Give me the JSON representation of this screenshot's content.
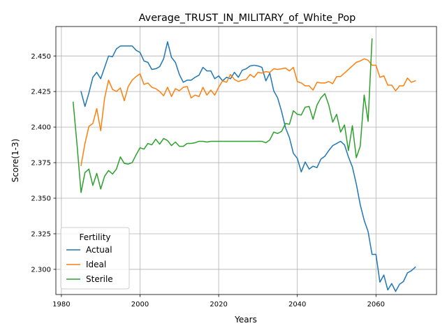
{
  "chart_data": {
    "type": "line",
    "title": "Average_TRUST_IN_MILITARY_of_White_Pop",
    "xlabel": "Years",
    "ylabel": "Score(1-3)",
    "xlim": [
      1978.6,
      1975.4
    ],
    "ylim": [
      2.2823,
      2.4707
    ],
    "grid": true,
    "xticks": [
      1980,
      2000,
      2020,
      2040,
      2060
    ],
    "yticks": [
      2.3,
      2.325,
      2.35,
      2.375,
      2.4,
      2.425,
      2.45
    ],
    "ytick_labels": [
      "2.300",
      "2.325",
      "2.350",
      "2.375",
      "2.400",
      "2.425",
      "2.450"
    ],
    "legend": {
      "title": "Fertility",
      "position": "lower-left"
    },
    "series": [
      {
        "name": "Actual",
        "color": "#1f77b4",
        "x": [
          1985,
          1986,
          1987,
          1988,
          1989,
          1990,
          1991,
          1992,
          1993,
          1994,
          1995,
          1996,
          1997,
          1998,
          1999,
          2000,
          2001,
          2002,
          2003,
          2004,
          2005,
          2006,
          2007,
          2008,
          2009,
          2010,
          2011,
          2012,
          2013,
          2014,
          2015,
          2016,
          2017,
          2018,
          2019,
          2020,
          2021,
          2022,
          2023,
          2024,
          2025,
          2026,
          2027,
          2028,
          2029,
          2030,
          2031,
          2032,
          2033,
          2034,
          2035,
          2036,
          2037,
          2038,
          2039,
          2040,
          2041,
          2042,
          2043,
          2044,
          2045,
          2046,
          2047,
          2048,
          2049,
          2050,
          2051,
          2052,
          2053,
          2054,
          2055,
          2056,
          2057,
          2058,
          2059,
          2060,
          2061,
          2062,
          2063,
          2064,
          2065,
          2066,
          2067,
          2068,
          2069,
          2070
        ],
        "values": [
          2.425,
          2.4145,
          2.424,
          2.435,
          2.4385,
          2.434,
          2.442,
          2.45,
          2.4495,
          2.455,
          2.457,
          2.457,
          2.457,
          2.457,
          2.454,
          2.4525,
          2.4465,
          2.4455,
          2.4405,
          2.441,
          2.4425,
          2.448,
          2.46,
          2.449,
          2.4455,
          2.437,
          2.4315,
          2.433,
          2.433,
          2.435,
          2.4365,
          2.442,
          2.4395,
          2.4395,
          2.434,
          2.436,
          2.4325,
          2.435,
          2.434,
          2.4385,
          2.435,
          2.44,
          2.441,
          2.443,
          2.4435,
          2.443,
          2.442,
          2.4325,
          2.438,
          2.4255,
          2.4205,
          2.411,
          2.3995,
          2.3925,
          2.3815,
          2.378,
          2.3685,
          2.3755,
          2.3705,
          2.3725,
          2.3715,
          2.3775,
          2.3795,
          2.3835,
          2.387,
          2.3885,
          2.39,
          2.3875,
          2.379,
          2.372,
          2.36,
          2.3455,
          2.3345,
          2.3265,
          2.3105,
          2.3105,
          2.291,
          2.296,
          2.2855,
          2.29,
          2.2845,
          2.2895,
          2.2915,
          2.2975,
          2.299,
          2.3015
        ]
      },
      {
        "name": "Ideal",
        "color": "#ff7f0e",
        "x": [
          1985,
          1986,
          1987,
          1988,
          1989,
          1990,
          1991,
          1992,
          1993,
          1994,
          1995,
          1996,
          1997,
          1998,
          1999,
          2000,
          2001,
          2002,
          2003,
          2004,
          2005,
          2006,
          2007,
          2008,
          2009,
          2010,
          2011,
          2012,
          2013,
          2014,
          2015,
          2016,
          2017,
          2018,
          2019,
          2020,
          2021,
          2022,
          2023,
          2024,
          2025,
          2026,
          2027,
          2028,
          2029,
          2030,
          2031,
          2032,
          2033,
          2034,
          2035,
          2036,
          2037,
          2038,
          2039,
          2040,
          2041,
          2042,
          2043,
          2044,
          2045,
          2046,
          2047,
          2048,
          2049,
          2050,
          2051,
          2052,
          2053,
          2054,
          2055,
          2056,
          2057,
          2058,
          2059,
          2060,
          2061,
          2062,
          2063,
          2064,
          2065,
          2066,
          2067,
          2068,
          2069,
          2070
        ],
        "values": [
          2.373,
          2.3885,
          2.4005,
          2.4025,
          2.413,
          2.3975,
          2.4205,
          2.433,
          2.4265,
          2.425,
          2.4275,
          2.4185,
          2.4285,
          2.433,
          2.4355,
          2.4375,
          2.43,
          2.431,
          2.428,
          2.427,
          2.425,
          2.422,
          2.428,
          2.4215,
          2.427,
          2.4255,
          2.428,
          2.4285,
          2.4205,
          2.4225,
          2.4215,
          2.428,
          2.4225,
          2.426,
          2.4225,
          2.428,
          2.4325,
          2.4315,
          2.437,
          2.4335,
          2.432,
          2.433,
          2.4335,
          2.437,
          2.435,
          2.4385,
          2.438,
          2.439,
          2.4385,
          2.441,
          2.4405,
          2.441,
          2.4415,
          2.4395,
          2.442,
          2.432,
          2.431,
          2.429,
          2.429,
          2.426,
          2.4315,
          2.431,
          2.431,
          2.432,
          2.4305,
          2.4355,
          2.4355,
          2.438,
          2.4405,
          2.443,
          2.4455,
          2.4465,
          2.448,
          2.447,
          2.4435,
          2.4435,
          2.435,
          2.436,
          2.4295,
          2.4295,
          2.4255,
          2.429,
          2.429,
          2.4345,
          2.4315,
          2.4325
        ]
      },
      {
        "name": "Sterile",
        "color": "#2ca02c",
        "x": [
          1983,
          1984,
          1985,
          1986,
          1987,
          1988,
          1989,
          1990,
          1991,
          1992,
          1993,
          1994,
          1995,
          1996,
          1997,
          1998,
          1999,
          2000,
          2001,
          2002,
          2003,
          2004,
          2005,
          2006,
          2007,
          2008,
          2009,
          2010,
          2011,
          2012,
          2013,
          2014,
          2015,
          2016,
          2017,
          2018,
          2019,
          2020,
          2021,
          2022,
          2023,
          2024,
          2025,
          2026,
          2027,
          2028,
          2029,
          2030,
          2031,
          2032,
          2033,
          2034,
          2035,
          2036,
          2037,
          2038,
          2039,
          2040,
          2041,
          2042,
          2043,
          2044,
          2045,
          2046,
          2047,
          2048,
          2049,
          2050,
          2051,
          2052,
          2053,
          2054,
          2055,
          2056,
          2057,
          2058,
          2059
        ],
        "values": [
          2.4175,
          2.387,
          2.354,
          2.368,
          2.3705,
          2.359,
          2.3675,
          2.3565,
          2.3655,
          2.3695,
          2.367,
          2.3705,
          2.379,
          2.3745,
          2.374,
          2.375,
          2.3805,
          2.3855,
          2.3845,
          2.3885,
          2.3875,
          2.3915,
          2.388,
          2.392,
          2.3905,
          2.387,
          2.3895,
          2.3865,
          2.3865,
          2.3885,
          2.3885,
          2.389,
          2.39,
          2.39,
          2.3895,
          2.39,
          2.39,
          2.39,
          2.39,
          2.39,
          2.39,
          2.39,
          2.39,
          2.39,
          2.39,
          2.39,
          2.39,
          2.39,
          2.39,
          2.389,
          2.391,
          2.3965,
          2.3955,
          2.397,
          2.4025,
          2.402,
          2.4115,
          2.409,
          2.4085,
          2.414,
          2.4145,
          2.4055,
          2.4155,
          2.4205,
          2.4235,
          2.4155,
          2.4035,
          2.409,
          2.3965,
          2.4015,
          2.3835,
          2.401,
          2.3785,
          2.3865,
          2.4225,
          2.404,
          2.462
        ]
      }
    ]
  }
}
